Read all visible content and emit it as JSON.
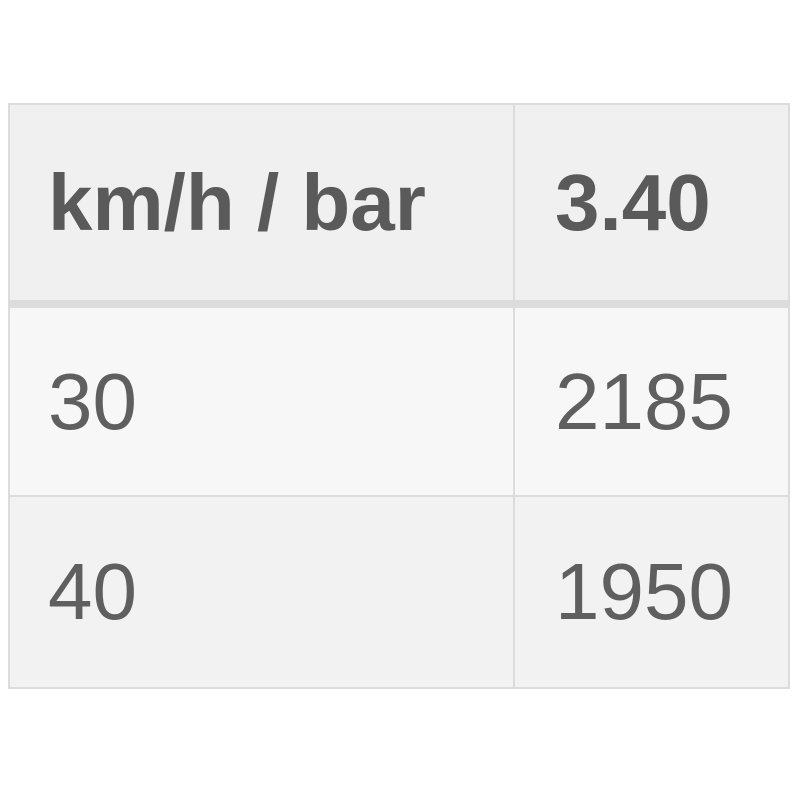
{
  "table": {
    "headers": [
      "km/h / bar",
      "3.40"
    ],
    "rows": [
      [
        "30",
        "2185"
      ],
      [
        "40",
        "1950"
      ]
    ]
  }
}
